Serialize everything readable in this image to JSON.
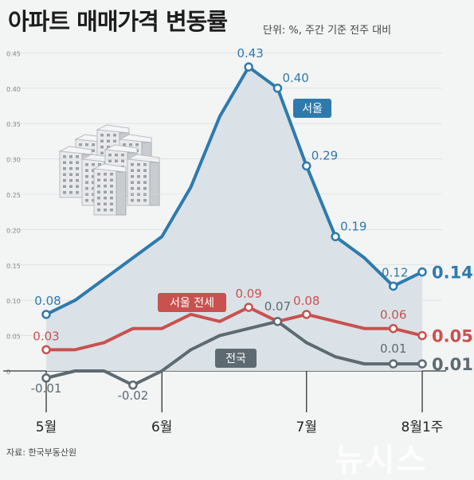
{
  "title": "아파트 매매가격 변동률",
  "unit_note": "단위: %, 주간 기준 전주 대비",
  "source": "자료: 한국부동산원",
  "watermark": "뉴시스",
  "colors": {
    "seoul": "#2e7aad",
    "seoul_jeonse": "#c9514f",
    "national": "#5d6a72",
    "area_fill": "#d8e0e6"
  },
  "chart_data": {
    "type": "line",
    "x": [
      "5월",
      "",
      "",
      "",
      "6월",
      "",
      "",
      "",
      "",
      "7월",
      "",
      "",
      "",
      "8월1주"
    ],
    "xticks": [
      "5월",
      "6월",
      "7월",
      "8월1주"
    ],
    "yticks": [
      -0.15,
      0,
      0.05,
      0.1,
      0.15,
      0.2,
      0.25,
      0.3,
      0.35,
      0.4,
      0.45
    ],
    "ylim": [
      -0.15,
      0.45
    ],
    "series": [
      {
        "name": "서울",
        "color_key": "seoul",
        "values": [
          0.08,
          0.1,
          0.13,
          0.16,
          0.19,
          0.26,
          0.36,
          0.43,
          0.4,
          0.29,
          0.19,
          0.16,
          0.12,
          0.14
        ],
        "labels": [
          "0.08",
          "",
          "",
          "",
          "",
          "",
          "",
          "0.43",
          "0.40",
          "0.29",
          "0.19",
          "",
          "0.12",
          "0.14"
        ]
      },
      {
        "name": "서울 전세",
        "color_key": "seoul_jeonse",
        "values": [
          0.03,
          0.03,
          0.04,
          0.06,
          0.06,
          0.08,
          0.07,
          0.09,
          0.07,
          0.08,
          0.07,
          0.06,
          0.06,
          0.05
        ],
        "labels": [
          "0.03",
          "",
          "",
          "",
          "",
          "",
          "",
          "0.09",
          "",
          "0.08",
          "",
          "",
          "0.06",
          "0.05"
        ]
      },
      {
        "name": "전국",
        "color_key": "national",
        "values": [
          -0.01,
          0.0,
          0.0,
          -0.02,
          0.0,
          0.03,
          0.05,
          0.06,
          0.07,
          0.04,
          0.02,
          0.01,
          0.01,
          0.01
        ],
        "labels": [
          "-0.01",
          "",
          "",
          "-0.02",
          "",
          "",
          "",
          "",
          "0.07",
          "",
          "",
          "",
          "0.01",
          "0.01"
        ]
      }
    ]
  }
}
